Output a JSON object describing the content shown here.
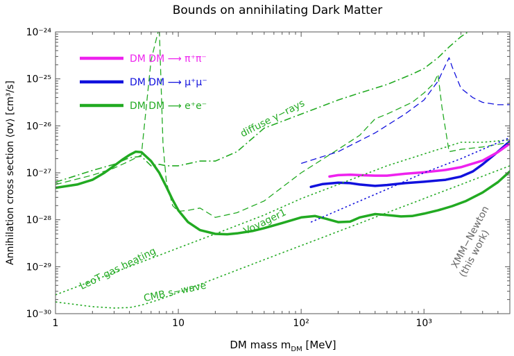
{
  "chart_data": {
    "type": "line",
    "title": "Bounds on annihilating Dark Matter",
    "xlabel": "DM mass m",
    "xlabel_sub": "DM",
    "xlabel_unit": " [MeV]",
    "ylabel": "Annihilation cross section ⟨σv⟩ [cm³/s]",
    "x_scale": "log",
    "y_scale": "log",
    "xlim": [
      1,
      5000
    ],
    "ylim": [
      1e-30,
      1e-24
    ],
    "x_ticks": [
      {
        "v": 1,
        "label": "1"
      },
      {
        "v": 10,
        "label": "10"
      },
      {
        "v": 100,
        "label": "10²"
      },
      {
        "v": 1000,
        "label": "10³"
      }
    ],
    "y_ticks": [
      {
        "v": -30,
        "label": "10⁻³⁰"
      },
      {
        "v": -29,
        "label": "10⁻²⁹"
      },
      {
        "v": -28,
        "label": "10⁻²⁸"
      },
      {
        "v": -27,
        "label": "10⁻²⁷"
      },
      {
        "v": -26,
        "label": "10⁻²⁶"
      },
      {
        "v": -25,
        "label": "10⁻²⁵"
      },
      {
        "v": -24,
        "label": "10⁻²⁴"
      }
    ],
    "legend_position": "top-left",
    "legend": [
      {
        "label": "DM DM ⟶ π⁺π⁻",
        "color": "#ee22ee"
      },
      {
        "label": "DM DM ⟶ μ⁺μ⁻",
        "color": "#1111dd"
      },
      {
        "label": "DM DM ⟶ e⁺e⁻",
        "color": "#22aa22"
      }
    ],
    "annotations": [
      {
        "text": "diffuse γ−rays",
        "x": 60,
        "y": -25.9,
        "rotate": -27,
        "color": "#22aa22"
      },
      {
        "text": "Voyager1",
        "x": 52,
        "y": -28.1,
        "rotate": -26,
        "color": "#22aa22"
      },
      {
        "text": "LeoT gas heating",
        "x": 3.3,
        "y": -29.1,
        "rotate": -26,
        "color": "#22aa22"
      },
      {
        "text": "CMB s−wave",
        "x": 9.5,
        "y": -29.6,
        "rotate": -12,
        "color": "#22aa22"
      },
      {
        "text": "XMM−Newton",
        "x": 2500,
        "y": -28.4,
        "rotate": -62,
        "color": "#666666"
      },
      {
        "text": "(this work)",
        "x": 2700,
        "y": -28.75,
        "rotate": -62,
        "color": "#666666"
      }
    ],
    "series": [
      {
        "channel": "ee",
        "kind": "thick",
        "color": "#22aa22",
        "x": [
          1,
          1.5,
          2,
          2.5,
          3,
          3.5,
          4,
          4.5,
          5,
          6,
          7,
          8,
          9,
          10,
          12,
          15,
          20,
          25,
          30,
          40,
          50,
          70,
          100,
          130,
          160,
          200,
          250,
          300,
          400,
          500,
          650,
          800,
          1000,
          1300,
          1700,
          2200,
          3000,
          4000,
          5000
        ],
        "y": [
          -27.32,
          -27.25,
          -27.15,
          -27.0,
          -26.85,
          -26.72,
          -26.62,
          -26.55,
          -26.56,
          -26.75,
          -27.0,
          -27.3,
          -27.58,
          -27.8,
          -28.05,
          -28.22,
          -28.3,
          -28.31,
          -28.29,
          -28.24,
          -28.18,
          -28.07,
          -27.95,
          -27.92,
          -27.98,
          -28.05,
          -28.04,
          -27.95,
          -27.88,
          -27.9,
          -27.93,
          -27.92,
          -27.87,
          -27.8,
          -27.71,
          -27.6,
          -27.42,
          -27.2,
          -26.97
        ]
      },
      {
        "channel": "mumu",
        "kind": "thick",
        "color": "#1111dd",
        "x": [
          120,
          150,
          200,
          250,
          300,
          400,
          500,
          700,
          1000,
          1500,
          2000,
          2500,
          3000,
          4000,
          5000
        ],
        "y": [
          -27.3,
          -27.24,
          -27.21,
          -27.22,
          -27.25,
          -27.28,
          -27.26,
          -27.22,
          -27.19,
          -27.15,
          -27.08,
          -26.97,
          -26.82,
          -26.55,
          -26.33
        ]
      },
      {
        "channel": "pipi",
        "kind": "thick",
        "color": "#ee22ee",
        "x": [
          170,
          200,
          250,
          300,
          400,
          500,
          700,
          1000,
          1500,
          2000,
          3000,
          4000,
          5000
        ],
        "y": [
          -27.08,
          -27.05,
          -27.04,
          -27.05,
          -27.06,
          -27.06,
          -27.02,
          -26.99,
          -26.94,
          -26.88,
          -26.74,
          -26.56,
          -26.38
        ]
      },
      {
        "channel": "ee",
        "kind": "dashdot",
        "label": "diffuse γ−rays",
        "color": "#22aa22",
        "x": [
          1,
          2,
          3,
          4,
          5,
          6,
          7,
          8,
          10,
          15,
          20,
          30,
          50,
          100,
          200,
          300,
          500,
          800,
          1000,
          1300,
          1600,
          2000,
          3000,
          5000
        ],
        "y": [
          -27.2,
          -26.95,
          -26.82,
          -26.68,
          -26.65,
          -26.85,
          -26.82,
          -26.85,
          -26.85,
          -26.75,
          -26.75,
          -26.55,
          -26.05,
          -25.75,
          -25.45,
          -25.3,
          -25.12,
          -24.9,
          -24.78,
          -24.55,
          -24.32,
          -24.1,
          -23.8,
          -23.5
        ]
      },
      {
        "channel": "ee",
        "kind": "dashed",
        "label": "Voyager1",
        "color": "#22aa22",
        "x": [
          1,
          2,
          3,
          4,
          5,
          6,
          7,
          7.5,
          8,
          9,
          10,
          12,
          15,
          20,
          30,
          50,
          100,
          200,
          300,
          400,
          500,
          800,
          1000,
          1200,
          1300,
          1400,
          1600,
          2000,
          3000,
          5000
        ],
        "y": [
          -27.25,
          -27.05,
          -26.9,
          -26.75,
          -26.62,
          -24.6,
          -23.9,
          -26.4,
          -27.2,
          -27.7,
          -27.82,
          -27.8,
          -27.75,
          -27.95,
          -27.85,
          -27.6,
          -27.0,
          -26.5,
          -26.2,
          -25.85,
          -25.75,
          -25.5,
          -25.3,
          -25.1,
          -24.9,
          -25.6,
          -26.55,
          -26.5,
          -26.45,
          -26.35
        ]
      },
      {
        "channel": "mumu",
        "kind": "dashed",
        "color": "#1111dd",
        "x": [
          100,
          200,
          400,
          700,
          1000,
          1300,
          1500,
          1600,
          1700,
          2000,
          2500,
          3000,
          4000,
          5000
        ],
        "y": [
          -26.8,
          -26.55,
          -26.15,
          -25.75,
          -25.45,
          -25.05,
          -24.7,
          -24.55,
          -24.75,
          -25.2,
          -25.4,
          -25.5,
          -25.55,
          -25.55
        ]
      },
      {
        "channel": "ee",
        "kind": "dotted",
        "label": "LeoT gas heating",
        "color": "#22aa22",
        "x": [
          1,
          2,
          5,
          10,
          20,
          50,
          100,
          200,
          500,
          1000,
          2000,
          3000,
          5000
        ],
        "y": [
          -29.6,
          -29.3,
          -28.9,
          -28.6,
          -28.3,
          -27.9,
          -27.55,
          -27.25,
          -26.85,
          -26.6,
          -26.35,
          -26.35,
          -26.3
        ]
      },
      {
        "channel": "ee",
        "kind": "dotted",
        "label": "CMB s−wave",
        "color": "#22aa22",
        "x": [
          1,
          2,
          3,
          4,
          5,
          7,
          10,
          20,
          50,
          100,
          200,
          500,
          1000,
          2000,
          5000
        ],
        "y": [
          -29.75,
          -29.85,
          -29.88,
          -29.87,
          -29.82,
          -29.7,
          -29.55,
          -29.25,
          -28.85,
          -28.55,
          -28.25,
          -27.85,
          -27.55,
          -27.25,
          -26.85
        ]
      },
      {
        "channel": "mumu",
        "kind": "dotted",
        "color": "#1111dd",
        "x": [
          120,
          200,
          500,
          1000,
          2000,
          3000,
          5000
        ],
        "y": [
          -28.05,
          -27.8,
          -27.35,
          -27.0,
          -26.7,
          -26.5,
          -26.25
        ]
      }
    ]
  }
}
